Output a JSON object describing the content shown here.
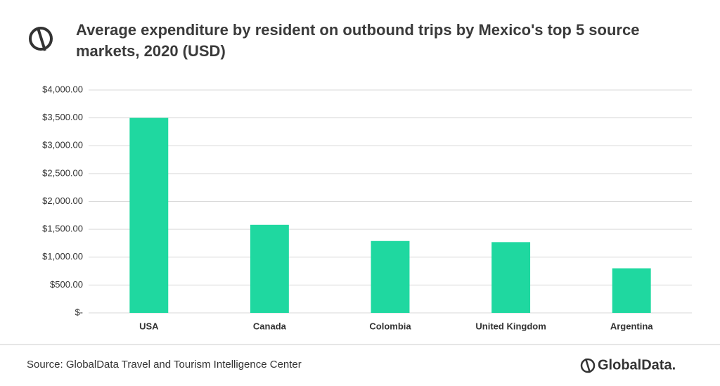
{
  "chart_data": {
    "type": "bar",
    "title": "Average expenditure by resident on outbound trips by Mexico's top 5 source markets, 2020 (USD)",
    "categories": [
      "USA",
      "Canada",
      "Colombia",
      "United Kingdom",
      "Argentina"
    ],
    "values": [
      3500,
      1580,
      1290,
      1270,
      800
    ],
    "color": "#1fd8a0",
    "ylim": [
      0,
      4000
    ],
    "yticks": [
      {
        "value": 0,
        "label": "$-"
      },
      {
        "value": 500,
        "label": "$500.00"
      },
      {
        "value": 1000,
        "label": "$1,000.00"
      },
      {
        "value": 1500,
        "label": "$1,500.00"
      },
      {
        "value": 2000,
        "label": "$2,000.00"
      },
      {
        "value": 2500,
        "label": "$2,500.00"
      },
      {
        "value": 3000,
        "label": "$3,000.00"
      },
      {
        "value": 3500,
        "label": "$3,500.00"
      },
      {
        "value": 4000,
        "label": "$4,000.00"
      }
    ],
    "grid": true
  },
  "source": "Source: GlobalData Travel and Tourism Intelligence Center",
  "brand": "GlobalData."
}
